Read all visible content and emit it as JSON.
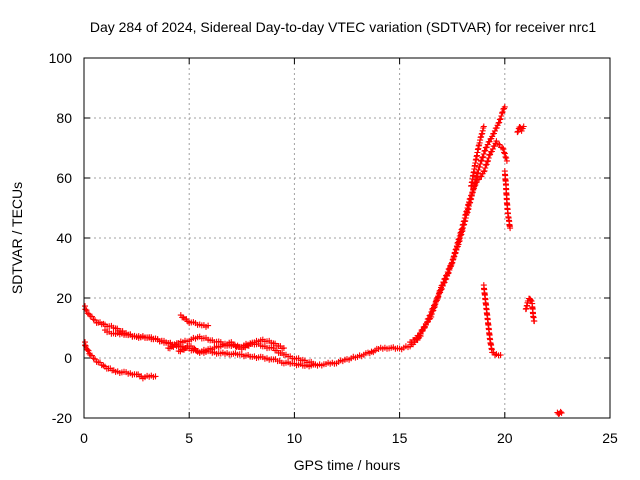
{
  "chart_data": {
    "type": "scatter",
    "title": "Day 284 of 2024, Sidereal Day-to-day VTEC variation (SDTVAR) for receiver nrc1",
    "xlabel": "GPS time / hours",
    "ylabel": "SDTVAR / TECUs",
    "xlim": [
      0,
      25
    ],
    "ylim": [
      -20,
      100
    ],
    "x_ticks": [
      0,
      5,
      10,
      15,
      20,
      25
    ],
    "y_ticks": [
      -20,
      0,
      20,
      40,
      60,
      80,
      100
    ],
    "x_tick_labels": [
      "0",
      "5",
      "10",
      "15",
      "20",
      "25"
    ],
    "y_tick_labels": [
      "-20",
      "0",
      "20",
      "40",
      "60",
      "80",
      "100"
    ],
    "grid": true,
    "marker": "plus",
    "series": [
      {
        "name": "SDTVAR",
        "color": "#ff0000",
        "traces": [
          {
            "x": [
              0.0,
              0.3,
              0.6,
              1.0,
              1.5,
              2.0,
              2.5,
              3.0,
              3.5,
              4.0,
              4.5
            ],
            "y": [
              17,
              14,
              12,
              11,
              10,
              8,
              7,
              7,
              6,
              5,
              4
            ]
          },
          {
            "x": [
              0.0,
              0.3,
              0.6,
              1.0,
              1.5,
              2.0,
              2.5,
              2.8,
              3.2,
              3.4
            ],
            "y": [
              5,
              1,
              -1,
              -3,
              -4.5,
              -5,
              -5.5,
              -6.5,
              -6,
              -6
            ]
          },
          {
            "x": [
              1.0,
              1.5,
              2.0,
              2.5,
              3.0,
              3.5,
              4.0,
              4.5,
              5.0,
              5.5,
              6.0,
              6.5,
              7.0,
              7.5,
              8.0,
              8.5,
              9.0,
              9.5,
              10.0,
              10.5,
              11.0,
              11.5,
              12.0,
              12.5,
              13.0,
              13.5,
              14.0,
              14.5,
              15.0,
              15.5,
              16.0
            ],
            "y": [
              9,
              8,
              8,
              7,
              7,
              6,
              5,
              4,
              3,
              2,
              2,
              1.5,
              1.5,
              1,
              0.5,
              0,
              -0.5,
              -1.5,
              -2,
              -2.5,
              -2.5,
              -2,
              -1.5,
              -0.5,
              0.5,
              1.5,
              3,
              3.5,
              3,
              4,
              7
            ]
          },
          {
            "x": [
              4.0,
              4.5,
              5.0,
              5.5,
              6.0,
              6.5,
              7.0,
              7.5,
              8.0,
              8.5,
              9.0,
              9.5,
              10.0,
              10.5,
              11.0
            ],
            "y": [
              3,
              5,
              6,
              7,
              6,
              5,
              4,
              4,
              5,
              4,
              3,
              1,
              0,
              -1,
              -2
            ]
          },
          {
            "x": [
              4.5,
              5.0,
              5.5,
              6.0,
              6.5,
              7.0,
              7.5,
              8.0,
              8.5,
              9.0,
              9.5
            ],
            "y": [
              2,
              4,
              2,
              3,
              4,
              5,
              3,
              5,
              6,
              5,
              3
            ]
          },
          {
            "x": [
              4.6,
              4.8,
              5.0,
              5.3,
              5.6,
              5.9
            ],
            "y": [
              14,
              13,
              12,
              11.5,
              11,
              10.5
            ]
          },
          {
            "x": [
              15.5,
              16.0,
              16.5,
              17.0,
              17.5,
              18.0,
              18.3,
              18.6,
              19.0,
              19.3,
              19.6,
              19.9,
              20.1
            ],
            "y": [
              5,
              8,
              14,
              24,
              32,
              44,
              52,
              58,
              62,
              68,
              72,
              70,
              66
            ]
          },
          {
            "x": [
              15.8,
              16.3,
              16.8,
              17.3,
              17.8,
              18.2,
              18.5,
              18.8,
              19.1,
              19.4,
              19.7,
              19.9,
              20.0
            ],
            "y": [
              6,
              12,
              20,
              28,
              38,
              48,
              56,
              64,
              70,
              74,
              78,
              82,
              84
            ]
          },
          {
            "x": [
              18.4,
              18.6,
              18.8,
              19.0
            ],
            "y": [
              57,
              65,
              72,
              77
            ]
          },
          {
            "x": [
              19.0,
              19.1,
              19.2,
              19.3,
              19.4,
              19.6,
              19.8
            ],
            "y": [
              24,
              18,
              12,
              6,
              2,
              1,
              1
            ]
          },
          {
            "x": [
              20.0,
              20.05,
              20.1,
              20.15,
              20.2,
              20.25
            ],
            "y": [
              62,
              58,
              52,
              48,
              46,
              43
            ]
          },
          {
            "x": [
              20.6,
              20.7,
              20.8,
              20.9
            ],
            "y": [
              75,
              77,
              76,
              77
            ]
          },
          {
            "x": [
              21.0,
              21.1,
              21.2,
              21.3,
              21.35,
              21.4
            ],
            "y": [
              16,
              19,
              20,
              18,
              14,
              12
            ]
          },
          {
            "x": [
              22.5,
              22.6,
              22.7
            ],
            "y": [
              -18.5,
              -18.5,
              -18
            ]
          }
        ]
      }
    ]
  }
}
